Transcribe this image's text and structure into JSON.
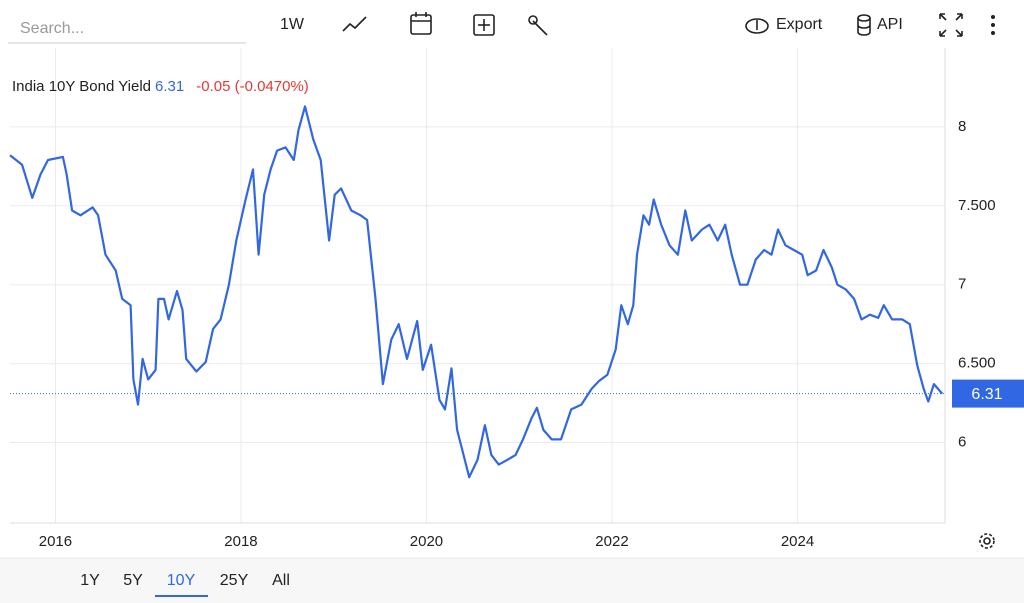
{
  "toolbar": {
    "search_placeholder": "Search...",
    "interval": "1W",
    "export": "Export",
    "api": "API"
  },
  "range_buttons": [
    "1Y",
    "5Y",
    "10Y",
    "25Y",
    "All"
  ],
  "active_range": 2,
  "chart_data": {
    "type": "line",
    "title": "India 10Y Bond Yield",
    "change": "-0.05 (-0.0470%)",
    "xlim": [
      2015.51,
      2025.59
    ],
    "xticks": [
      2016,
      2018,
      2020,
      2022,
      2024
    ],
    "ylim": [
      5.49,
      8.5
    ],
    "yticks": [
      6,
      {
        "value": 6.5,
        "label": "6.500"
      },
      7,
      {
        "value": 7.5,
        "label": "7.500"
      },
      8
    ],
    "grid": true,
    "series": [
      {
        "name": "India 10Y Bond Yield",
        "color": "#3167e3",
        "x": [
          2015.51,
          2015.64,
          2015.75,
          2015.84,
          2015.92,
          2016.08,
          2016.12,
          2016.18,
          2016.27,
          2016.4,
          2016.46,
          2016.54,
          2016.65,
          2016.72,
          2016.81,
          2016.84,
          2016.89,
          2016.94,
          2017.0,
          2017.08,
          2017.11,
          2017.17,
          2017.22,
          2017.31,
          2017.37,
          2017.41,
          2017.52,
          2017.62,
          2017.7,
          2017.78,
          2017.87,
          2017.95,
          2018.05,
          2018.13,
          2018.19,
          2018.25,
          2018.32,
          2018.39,
          2018.48,
          2018.57,
          2018.62,
          2018.69,
          2018.78,
          2018.86,
          2018.95,
          2019.01,
          2019.08,
          2019.19,
          2019.29,
          2019.36,
          2019.45,
          2019.53,
          2019.62,
          2019.7,
          2019.79,
          2019.9,
          2019.96,
          2020.05,
          2020.14,
          2020.2,
          2020.27,
          2020.33,
          2020.4,
          2020.46,
          2020.55,
          2020.63,
          2020.7,
          2020.78,
          2020.87,
          2020.96,
          2021.04,
          2021.13,
          2021.19,
          2021.26,
          2021.35,
          2021.45,
          2021.56,
          2021.67,
          2021.78,
          2021.86,
          2021.95,
          2022.04,
          2022.1,
          2022.17,
          2022.23,
          2022.27,
          2022.34,
          2022.4,
          2022.45,
          2022.53,
          2022.62,
          2022.71,
          2022.79,
          2022.86,
          2022.97,
          2023.05,
          2023.14,
          2023.22,
          2023.29,
          2023.38,
          2023.46,
          2023.55,
          2023.64,
          2023.72,
          2023.79,
          2023.87,
          2023.96,
          2024.05,
          2024.11,
          2024.2,
          2024.28,
          2024.37,
          2024.43,
          2024.52,
          2024.61,
          2024.69,
          2024.78,
          2024.87,
          2024.93,
          2025.02,
          2025.13,
          2025.21,
          2025.29,
          2025.36,
          2025.41,
          2025.47,
          2025.56
        ],
        "values": [
          7.82,
          7.76,
          7.55,
          7.7,
          7.79,
          7.81,
          7.7,
          7.47,
          7.44,
          7.49,
          7.44,
          7.19,
          7.09,
          6.91,
          6.87,
          6.4,
          6.24,
          6.53,
          6.4,
          6.46,
          6.91,
          6.91,
          6.78,
          6.96,
          6.84,
          6.53,
          6.45,
          6.51,
          6.72,
          6.78,
          7.0,
          7.28,
          7.54,
          7.73,
          7.19,
          7.57,
          7.73,
          7.85,
          7.87,
          7.79,
          7.98,
          8.13,
          7.92,
          7.79,
          7.28,
          7.57,
          7.61,
          7.47,
          7.44,
          7.41,
          6.91,
          6.37,
          6.65,
          6.75,
          6.53,
          6.77,
          6.46,
          6.62,
          6.27,
          6.21,
          6.47,
          6.08,
          5.92,
          5.78,
          5.89,
          6.11,
          5.92,
          5.86,
          5.89,
          5.92,
          6.02,
          6.15,
          6.22,
          6.08,
          6.02,
          6.02,
          6.21,
          6.24,
          6.34,
          6.39,
          6.43,
          6.59,
          6.87,
          6.75,
          6.87,
          7.19,
          7.44,
          7.38,
          7.54,
          7.38,
          7.25,
          7.19,
          7.47,
          7.28,
          7.35,
          7.38,
          7.28,
          7.38,
          7.19,
          7.0,
          7.0,
          7.16,
          7.22,
          7.19,
          7.35,
          7.25,
          7.22,
          7.19,
          7.06,
          7.09,
          7.22,
          7.11,
          7.0,
          6.97,
          6.91,
          6.78,
          6.81,
          6.79,
          6.87,
          6.78,
          6.78,
          6.75,
          6.49,
          6.34,
          6.26,
          6.37,
          6.31
        ]
      }
    ]
  }
}
